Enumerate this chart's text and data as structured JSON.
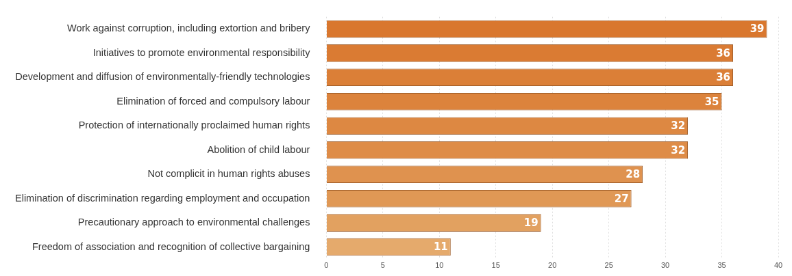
{
  "chart_data": {
    "type": "bar",
    "orientation": "horizontal",
    "categories": [
      "Work against corruption, including extortion and bribery",
      "Initiatives to promote environmental responsibility",
      "Development and diffusion of environmentally-friendly technologies",
      "Elimination of forced and compulsory labour",
      "Protection of internationally proclaimed human rights",
      "Abolition of child labour",
      "Not complicit in human rights abuses",
      "Elimination of discrimination regarding employment and occupation",
      "Precautionary approach to environmental challenges",
      "Freedom of association and recognition of collective bargaining"
    ],
    "values": [
      39,
      36,
      36,
      35,
      32,
      32,
      28,
      27,
      19,
      11
    ],
    "colors": [
      "#d9772e",
      "#da7b33",
      "#db7f37",
      "#dc833c",
      "#dd8842",
      "#de8c47",
      "#df924f",
      "#e09855",
      "#e2a160",
      "#e5aa6c"
    ],
    "xlim": [
      0,
      40
    ],
    "xticks": [
      0,
      5,
      10,
      15,
      20,
      25,
      30,
      35,
      40
    ],
    "grid": true,
    "data_labels": true
  }
}
